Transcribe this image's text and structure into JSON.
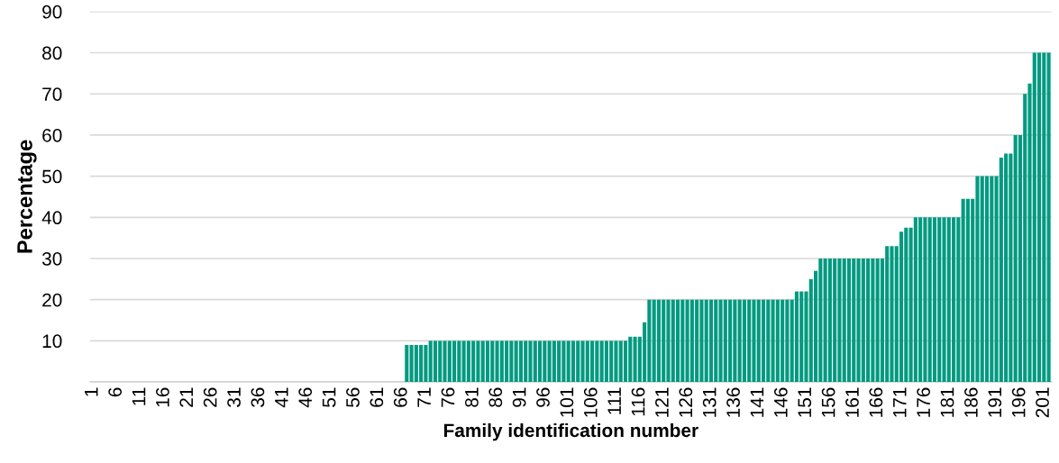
{
  "chart_data": {
    "type": "bar",
    "xlabel": "Family identification number",
    "ylabel": "Percentage",
    "categories": [
      "1",
      null,
      null,
      null,
      null,
      "6",
      null,
      null,
      null,
      null,
      "11",
      null,
      null,
      null,
      null,
      "16",
      null,
      null,
      null,
      null,
      "21",
      null,
      null,
      null,
      null,
      "26",
      null,
      null,
      null,
      null,
      "31",
      null,
      null,
      null,
      null,
      "36",
      null,
      null,
      null,
      null,
      "41",
      null,
      null,
      null,
      null,
      "46",
      null,
      null,
      null,
      null,
      "51",
      null,
      null,
      null,
      null,
      "56",
      null,
      null,
      null,
      null,
      "61",
      null,
      null,
      null,
      null,
      "66",
      null,
      null,
      null,
      null,
      "71",
      null,
      null,
      null,
      null,
      "76",
      null,
      null,
      null,
      null,
      "81",
      null,
      null,
      null,
      null,
      "86",
      null,
      null,
      null,
      null,
      "91",
      null,
      null,
      null,
      null,
      "96",
      null,
      null,
      null,
      null,
      "101",
      null,
      null,
      null,
      null,
      "106",
      null,
      null,
      null,
      null,
      "111",
      null,
      null,
      null,
      null,
      "116",
      null,
      null,
      null,
      null,
      "121",
      null,
      null,
      null,
      null,
      "126",
      null,
      null,
      null,
      null,
      "131",
      null,
      null,
      null,
      null,
      "136",
      null,
      null,
      null,
      null,
      "141",
      null,
      null,
      null,
      null,
      "146",
      null,
      null,
      null,
      null,
      "151",
      null,
      null,
      null,
      null,
      "156",
      null,
      null,
      null,
      null,
      "161",
      null,
      null,
      null,
      null,
      "166",
      null,
      null,
      null,
      null,
      "171",
      null,
      null,
      null,
      null,
      "176",
      null,
      null,
      null,
      null,
      "181",
      null,
      null,
      null,
      null,
      "186",
      null,
      null,
      null,
      null,
      "191",
      null,
      null,
      null,
      null,
      "196",
      null,
      null,
      null,
      null,
      "201",
      null
    ],
    "values": [
      0,
      0,
      0,
      0,
      0,
      0,
      0,
      0,
      0,
      0,
      0,
      0,
      0,
      0,
      0,
      0,
      0,
      0,
      0,
      0,
      0,
      0,
      0,
      0,
      0,
      0,
      0,
      0,
      0,
      0,
      0,
      0,
      0,
      0,
      0,
      0,
      0,
      0,
      0,
      0,
      0,
      0,
      0,
      0,
      0,
      0,
      0,
      0,
      0,
      0,
      0,
      0,
      0,
      0,
      0,
      0,
      0,
      0,
      0,
      0,
      0,
      0,
      0,
      0,
      0,
      0,
      9,
      9,
      9,
      9,
      9,
      10,
      10,
      10,
      10,
      10,
      10,
      10,
      10,
      10,
      10,
      10,
      10,
      10,
      10,
      10,
      10,
      10,
      10,
      10,
      10,
      10,
      10,
      10,
      10,
      10,
      10,
      10,
      10,
      10,
      10,
      10,
      10,
      10,
      10,
      10,
      10,
      10,
      10,
      10,
      10,
      10,
      10,
      11,
      11,
      11,
      14.5,
      20,
      20,
      20,
      20,
      20,
      20,
      20,
      20,
      20,
      20,
      20,
      20,
      20,
      20,
      20,
      20,
      20,
      20,
      20,
      20,
      20,
      20,
      20,
      20,
      20,
      20,
      20,
      20,
      20,
      20,
      20,
      22,
      22,
      22,
      25,
      27,
      30,
      30,
      30,
      30,
      30,
      30,
      30,
      30,
      30,
      30,
      30,
      30,
      30,
      30,
      33,
      33,
      33,
      36.5,
      37.5,
      37.5,
      40,
      40,
      40,
      40,
      40,
      40,
      40,
      40,
      40,
      40,
      44.5,
      44.5,
      44.5,
      50,
      50,
      50,
      50,
      50,
      54.5,
      55.5,
      55.5,
      60,
      60,
      70,
      72.5,
      80,
      80,
      80,
      80
    ],
    "color": "#009a80",
    "ylim": [
      0,
      90
    ],
    "yticks": [
      {
        "value": 0,
        "label": null
      },
      10,
      20,
      30,
      40,
      50,
      60,
      70,
      80,
      90
    ],
    "grid": "y"
  }
}
